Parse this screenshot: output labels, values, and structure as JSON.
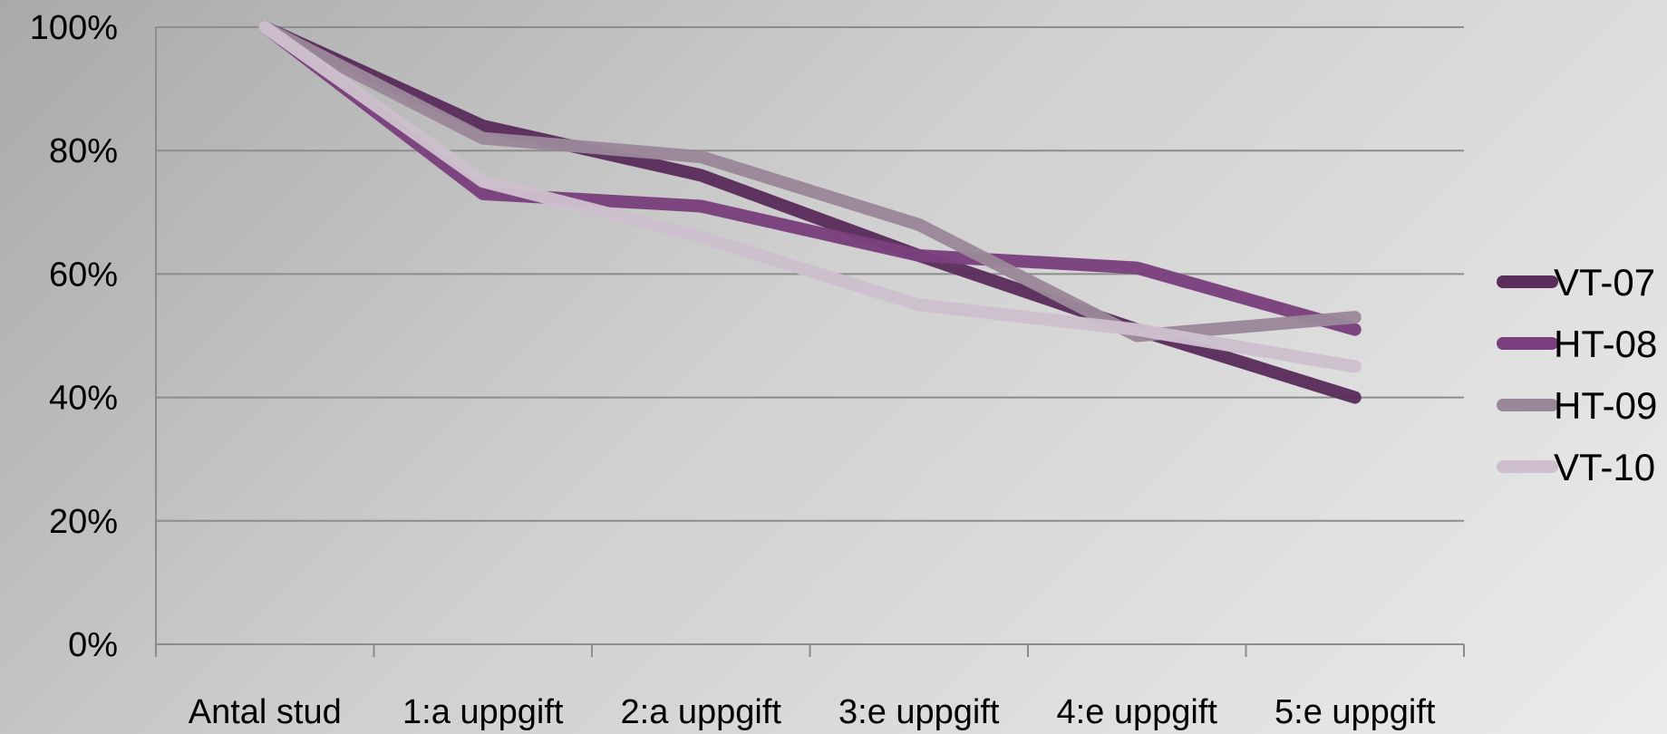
{
  "chart_data": {
    "type": "line",
    "categories": [
      "Antal stud",
      "1:a uppgift",
      "2:a uppgift",
      "3:e uppgift",
      "4:e uppgift",
      "5:e uppgift"
    ],
    "y_ticks": [
      "0%",
      "20%",
      "40%",
      "60%",
      "80%",
      "100%"
    ],
    "ylim": [
      0,
      100
    ],
    "grid": true,
    "legend_position": "right",
    "series": [
      {
        "name": "VT-07",
        "color": "#5a2d5b",
        "values": [
          100,
          84,
          76,
          63,
          51,
          40
        ]
      },
      {
        "name": "HT-08",
        "color": "#7a3f7d",
        "values": [
          100,
          73,
          71,
          63,
          61,
          51
        ]
      },
      {
        "name": "HT-09",
        "color": "#9a8799",
        "values": [
          100,
          82,
          79,
          68,
          50,
          53
        ]
      },
      {
        "name": "VT-10",
        "color": "#cdbfcd",
        "values": [
          100,
          75,
          66,
          55,
          51,
          45
        ]
      }
    ]
  }
}
